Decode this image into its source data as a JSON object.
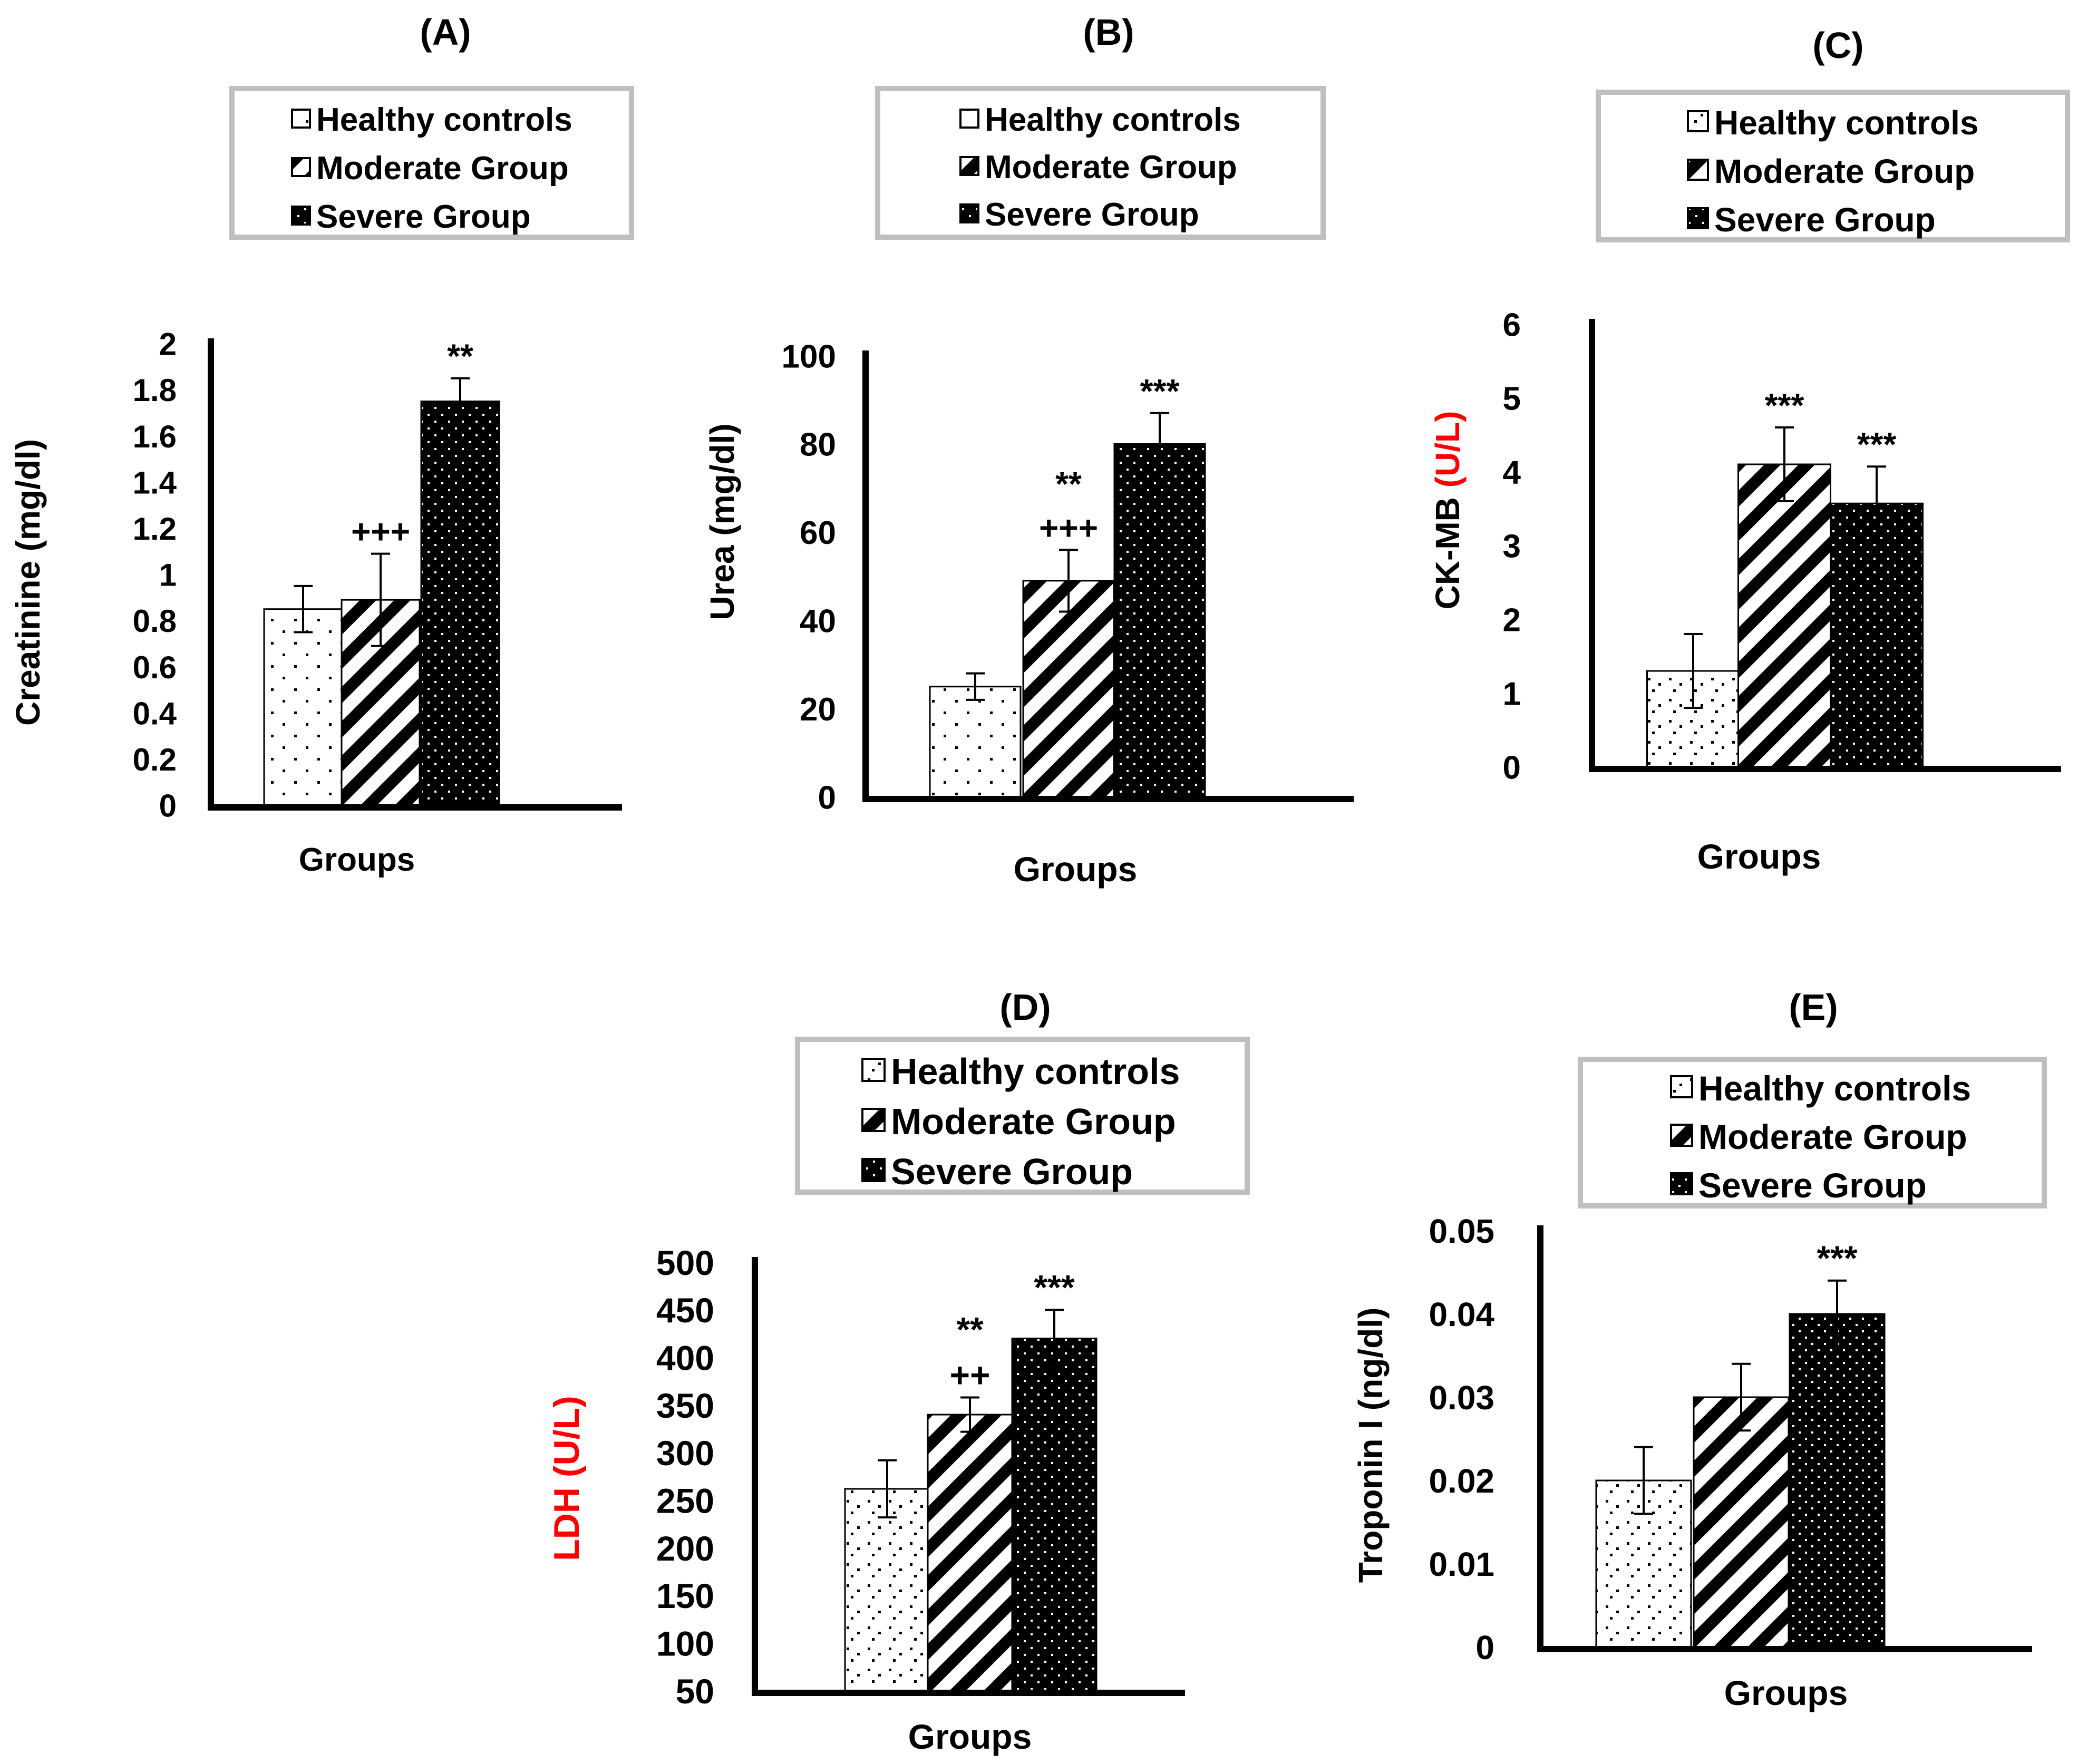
{
  "figure": {
    "legend_entries": [
      "Healthy controls",
      "Moderate Group",
      "Severe Group"
    ],
    "colors": {
      "text": "#000000",
      "accent_red": "#ff0000",
      "legend_border": "#bfbfbf"
    }
  },
  "chart_data": [
    {
      "panel": "(A)",
      "type": "bar",
      "title": "(A)",
      "categories": [
        "Healthy controls",
        "Moderate Group",
        "Severe Group"
      ],
      "values": [
        0.85,
        0.89,
        1.75
      ],
      "errors": [
        0.1,
        0.2,
        0.1
      ],
      "significance": [
        "",
        "+++",
        "**"
      ],
      "ylabel": "Creatinine (mg/dl)",
      "ylabel_prefix": "Creatinine (mg/dl)",
      "ylabel_suffix": "",
      "xlabel": "Groups",
      "ylim": [
        0,
        2
      ],
      "yticks": [
        0,
        0.2,
        0.4,
        0.6,
        0.8,
        1,
        1.2,
        1.4,
        1.6,
        1.8,
        2
      ],
      "ytick_labels": [
        "0",
        "0.2",
        "0.4",
        "0.6",
        "0.8",
        "1",
        "1.2",
        "1.4",
        "1.6",
        "1.8",
        "2"
      ],
      "legend": [
        "Healthy controls",
        "Moderate Group",
        "Severe Group"
      ]
    },
    {
      "panel": "(B)",
      "type": "bar",
      "title": "(B)",
      "categories": [
        "Healthy controls",
        "Moderate Group",
        "Severe Group"
      ],
      "values": [
        25,
        49,
        80
      ],
      "errors": [
        3,
        7,
        7
      ],
      "significance": [
        "",
        "**\n+++",
        "***"
      ],
      "ylabel": "Urea (mg/dl)",
      "ylabel_prefix": "Urea (mg/dl)",
      "ylabel_suffix": "",
      "xlabel": "Groups",
      "ylim": [
        0,
        100
      ],
      "yticks": [
        0,
        20,
        40,
        60,
        80,
        100
      ],
      "ytick_labels": [
        "0",
        "20",
        "40",
        "60",
        "80",
        "100"
      ],
      "legend": [
        "Healthy controls",
        "Moderate Group",
        "Severe Group"
      ]
    },
    {
      "panel": "(C)",
      "type": "bar",
      "title": "(C)",
      "categories": [
        "Healthy controls",
        "Moderate Group",
        "Severe Group"
      ],
      "values": [
        1.3,
        4.1,
        3.57
      ],
      "errors": [
        0.5,
        0.5,
        0.5
      ],
      "significance": [
        "",
        "***",
        "***"
      ],
      "ylabel": "CK-MB (U/L)",
      "ylabel_prefix": "CK-MB ",
      "ylabel_suffix": "(U/L)",
      "xlabel": "Groups",
      "ylim": [
        0,
        6
      ],
      "yticks": [
        0,
        1,
        2,
        3,
        4,
        5,
        6
      ],
      "ytick_labels": [
        "0",
        "1",
        "2",
        "3",
        "4",
        "5",
        "6"
      ],
      "legend": [
        "Healthy controls",
        "Moderate Group",
        "Severe Group"
      ]
    },
    {
      "panel": "(D)",
      "type": "bar",
      "title": "(D)",
      "categories": [
        "Healthy controls",
        "Moderate Group",
        "Severe Group"
      ],
      "values": [
        262,
        340,
        420
      ],
      "errors": [
        30,
        18,
        30
      ],
      "significance": [
        "",
        "**\n++",
        "***"
      ],
      "ylabel": "LDH (U/L)",
      "ylabel_prefix": "",
      "ylabel_suffix": "LDH (U/L)",
      "xlabel": "Groups",
      "ylim": [
        50,
        500
      ],
      "yticks": [
        50,
        100,
        150,
        200,
        250,
        300,
        350,
        400,
        450,
        500
      ],
      "ytick_labels": [
        "50",
        "100",
        "150",
        "200",
        "250",
        "300",
        "350",
        "400",
        "450",
        "500"
      ],
      "legend": [
        "Healthy controls",
        "Moderate Group",
        "Severe Group"
      ]
    },
    {
      "panel": "(E)",
      "type": "bar",
      "title": "(E)",
      "categories": [
        "Healthy controls",
        "Moderate Group",
        "Severe Group"
      ],
      "values": [
        0.02,
        0.03,
        0.04
      ],
      "errors": [
        0.004,
        0.004,
        0.004
      ],
      "significance": [
        "",
        "",
        "***"
      ],
      "ylabel": "Troponin I (ng/dl)",
      "ylabel_prefix": "Troponin I (ng/dl)",
      "ylabel_suffix": "",
      "xlabel": "Groups",
      "ylim": [
        0,
        0.05
      ],
      "yticks": [
        0,
        0.01,
        0.02,
        0.03,
        0.04,
        0.05
      ],
      "ytick_labels": [
        "0",
        "0.01",
        "0.02",
        "0.03",
        "0.04",
        "0.05"
      ],
      "legend": [
        "Healthy controls",
        "Moderate Group",
        "Severe Group"
      ]
    }
  ]
}
